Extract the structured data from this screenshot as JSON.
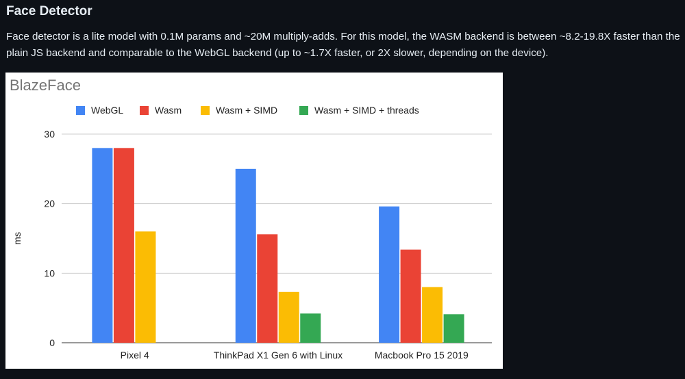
{
  "section": {
    "heading": "Face Detector",
    "paragraph": "Face detector is a lite model with 0.1M params and ~20M multiply-adds. For this model, the WASM backend is between ~8.2-19.8X faster than the plain JS backend and comparable to the WebGL backend (up to ~1.7X faster, or 2X slower, depending on the device)."
  },
  "chart_data": {
    "type": "bar",
    "title": "BlazeFace",
    "ylabel": "ms",
    "xlabel": "",
    "ylim": [
      0,
      30
    ],
    "yticks": [
      0,
      10,
      20,
      30
    ],
    "grid": true,
    "legend_position": "top",
    "categories": [
      "Pixel 4",
      "ThinkPad X1 Gen 6 with Linux",
      "Macbook Pro 15 2019"
    ],
    "series": [
      {
        "name": "WebGL",
        "color": "#4285f4",
        "values": [
          28,
          25,
          19.6
        ]
      },
      {
        "name": "Wasm",
        "color": "#ea4335",
        "values": [
          28,
          15.6,
          13.4
        ]
      },
      {
        "name": "Wasm + SIMD",
        "color": "#fbbc04",
        "values": [
          16,
          7.3,
          8
        ]
      },
      {
        "name": "Wasm + SIMD + threads",
        "color": "#34a853",
        "values": [
          null,
          4.2,
          4.1
        ]
      }
    ]
  }
}
